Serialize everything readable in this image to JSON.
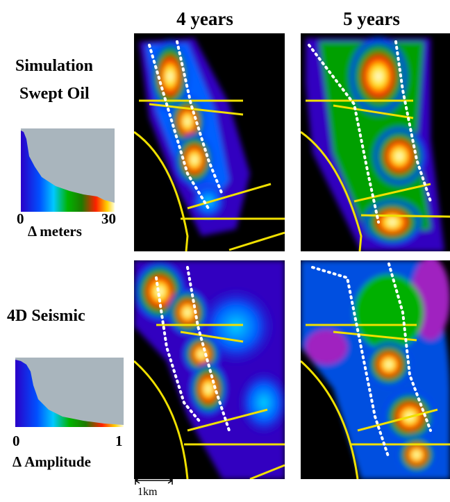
{
  "header": {
    "columns": [
      "4 years",
      "5 years"
    ]
  },
  "rows": [
    {
      "label_lines": [
        "Simulation",
        "Swept Oil"
      ],
      "colorbar": {
        "min": "0",
        "label": "Δ meters",
        "max": "30"
      }
    },
    {
      "label_lines": [
        "4D Seismic"
      ],
      "colorbar": {
        "min": "0",
        "label": "Δ Amplitude",
        "max": "1"
      }
    }
  ],
  "scale_bar": "1km"
}
